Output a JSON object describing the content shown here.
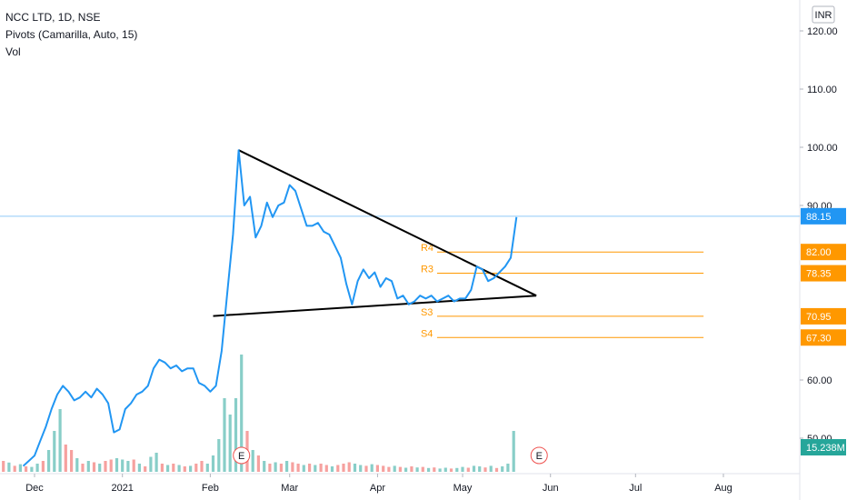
{
  "legend": {
    "symbol": "NCC LTD, 1D, NSE",
    "pivots": "Pivots (Camarilla, Auto, 15)",
    "volume": "Vol"
  },
  "currency": "INR",
  "colors": {
    "price_line": "#2196f3",
    "pivot_line": "#ff9800",
    "trend_line": "#000000",
    "vol_up": "#26a69a",
    "vol_down": "#ef5350",
    "last_price_tag": "#2196f3",
    "volume_tag": "#26a69a",
    "earnings": "#ef5350"
  },
  "chart_data": {
    "type": "line",
    "title": "NCC LTD, 1D, NSE",
    "x_ticks": [
      "Dec",
      "2021",
      "Feb",
      "Mar",
      "Apr",
      "May",
      "Jun",
      "Jul",
      "Aug"
    ],
    "x_tick_dates": [
      "2020-12-01",
      "2021-01-01",
      "2021-02-01",
      "2021-03-01",
      "2021-04-01",
      "2021-05-01",
      "2021-06-01",
      "2021-07-01",
      "2021-08-01"
    ],
    "y_ticks": [
      "120.00",
      "110.00",
      "100.00",
      "90.00",
      "60.00",
      "50.00"
    ],
    "y_tick_values": [
      120,
      110,
      100,
      90,
      60,
      50
    ],
    "ylim": [
      45.5,
      125
    ],
    "grid": false,
    "price_series": {
      "name": "NCC LTD",
      "points": [
        [
          "2020-11-27",
          45.2
        ],
        [
          "2020-12-01",
          47.0
        ],
        [
          "2020-12-03",
          49.5
        ],
        [
          "2020-12-05",
          52.0
        ],
        [
          "2020-12-07",
          55.0
        ],
        [
          "2020-12-09",
          57.5
        ],
        [
          "2020-12-11",
          59.0
        ],
        [
          "2020-12-13",
          58.0
        ],
        [
          "2020-12-15",
          56.5
        ],
        [
          "2020-12-17",
          57.0
        ],
        [
          "2020-12-19",
          58.0
        ],
        [
          "2020-12-21",
          57.0
        ],
        [
          "2020-12-23",
          58.5
        ],
        [
          "2020-12-25",
          57.5
        ],
        [
          "2020-12-27",
          56.0
        ],
        [
          "2020-12-29",
          51.0
        ],
        [
          "2020-12-31",
          51.5
        ],
        [
          "2021-01-02",
          55.0
        ],
        [
          "2021-01-04",
          56.0
        ],
        [
          "2021-01-06",
          57.5
        ],
        [
          "2021-01-08",
          58.0
        ],
        [
          "2021-01-10",
          59.0
        ],
        [
          "2021-01-12",
          62.0
        ],
        [
          "2021-01-14",
          63.5
        ],
        [
          "2021-01-16",
          63.0
        ],
        [
          "2021-01-18",
          62.0
        ],
        [
          "2021-01-20",
          62.5
        ],
        [
          "2021-01-22",
          61.5
        ],
        [
          "2021-01-24",
          62.0
        ],
        [
          "2021-01-26",
          62.0
        ],
        [
          "2021-01-28",
          59.5
        ],
        [
          "2021-01-30",
          59.0
        ],
        [
          "2021-02-01",
          58.0
        ],
        [
          "2021-02-03",
          59.0
        ],
        [
          "2021-02-05",
          65.0
        ],
        [
          "2021-02-07",
          75.0
        ],
        [
          "2021-02-09",
          85.0
        ],
        [
          "2021-02-11",
          99.5
        ],
        [
          "2021-02-13",
          90.0
        ],
        [
          "2021-02-15",
          91.5
        ],
        [
          "2021-02-17",
          84.5
        ],
        [
          "2021-02-19",
          86.5
        ],
        [
          "2021-02-21",
          90.5
        ],
        [
          "2021-02-23",
          88.0
        ],
        [
          "2021-02-25",
          90.0
        ],
        [
          "2021-02-27",
          90.5
        ],
        [
          "2021-03-01",
          93.5
        ],
        [
          "2021-03-03",
          92.5
        ],
        [
          "2021-03-05",
          89.5
        ],
        [
          "2021-03-07",
          86.5
        ],
        [
          "2021-03-09",
          86.5
        ],
        [
          "2021-03-11",
          87.0
        ],
        [
          "2021-03-13",
          85.5
        ],
        [
          "2021-03-15",
          85.0
        ],
        [
          "2021-03-17",
          83.0
        ],
        [
          "2021-03-19",
          81.0
        ],
        [
          "2021-03-21",
          76.5
        ],
        [
          "2021-03-23",
          73.0
        ],
        [
          "2021-03-25",
          77.0
        ],
        [
          "2021-03-27",
          79.0
        ],
        [
          "2021-03-29",
          77.5
        ],
        [
          "2021-03-31",
          78.5
        ],
        [
          "2021-04-02",
          76.0
        ],
        [
          "2021-04-04",
          77.5
        ],
        [
          "2021-04-06",
          77.0
        ],
        [
          "2021-04-08",
          74.0
        ],
        [
          "2021-04-10",
          74.5
        ],
        [
          "2021-04-12",
          73.0
        ],
        [
          "2021-04-14",
          73.5
        ],
        [
          "2021-04-16",
          74.5
        ],
        [
          "2021-04-18",
          74.0
        ],
        [
          "2021-04-20",
          74.5
        ],
        [
          "2021-04-22",
          73.5
        ],
        [
          "2021-04-24",
          74.0
        ],
        [
          "2021-04-26",
          74.5
        ],
        [
          "2021-04-28",
          73.5
        ],
        [
          "2021-04-30",
          74.0
        ],
        [
          "2021-05-02",
          74.0
        ],
        [
          "2021-05-04",
          75.5
        ],
        [
          "2021-05-06",
          79.5
        ],
        [
          "2021-05-08",
          79.0
        ],
        [
          "2021-05-10",
          77.0
        ],
        [
          "2021-05-12",
          77.5
        ],
        [
          "2021-05-14",
          78.5
        ],
        [
          "2021-05-16",
          79.5
        ],
        [
          "2021-05-18",
          81.0
        ],
        [
          "2021-05-20",
          88.0
        ]
      ]
    },
    "trend_lines": [
      {
        "from": [
          "2021-02-11",
          99.5
        ],
        "to": [
          "2021-05-27",
          74.5
        ]
      },
      {
        "from": [
          "2021-02-02",
          71.0
        ],
        "to": [
          "2021-05-27",
          74.5
        ]
      }
    ],
    "pivot_levels": [
      {
        "label": "R4",
        "value": 82.0,
        "price": "82.00",
        "start": "2021-04-22",
        "end": "2021-07-25"
      },
      {
        "label": "R3",
        "value": 78.35,
        "price": "78.35",
        "start": "2021-04-22",
        "end": "2021-07-25"
      },
      {
        "label": "S3",
        "value": 70.95,
        "price": "70.95",
        "start": "2021-04-22",
        "end": "2021-07-25"
      },
      {
        "label": "S4",
        "value": 67.3,
        "price": "67.30",
        "start": "2021-04-22",
        "end": "2021-07-25"
      }
    ],
    "last_price": {
      "value": 88.15,
      "label": "88.15"
    },
    "volume_series": {
      "name": "Vol",
      "last_label": "15.238M",
      "bars": [
        {
          "date": "2020-11-18",
          "v": 0.3,
          "up": true
        },
        {
          "date": "2020-11-20",
          "v": 0.4,
          "up": false
        },
        {
          "date": "2020-11-22",
          "v": 0.34,
          "up": true
        },
        {
          "date": "2020-11-24",
          "v": 0.22,
          "up": false
        },
        {
          "date": "2020-11-26",
          "v": 0.28,
          "up": true
        },
        {
          "date": "2020-11-28",
          "v": 0.2,
          "up": false
        },
        {
          "date": "2020-11-30",
          "v": 0.18,
          "up": true
        },
        {
          "date": "2020-12-02",
          "v": 0.3,
          "up": true
        },
        {
          "date": "2020-12-04",
          "v": 0.4,
          "up": false
        },
        {
          "date": "2020-12-06",
          "v": 0.8,
          "up": true
        },
        {
          "date": "2020-12-08",
          "v": 1.5,
          "up": true
        },
        {
          "date": "2020-12-10",
          "v": 2.3,
          "up": true
        },
        {
          "date": "2020-12-12",
          "v": 1.0,
          "up": false
        },
        {
          "date": "2020-12-14",
          "v": 0.8,
          "up": false
        },
        {
          "date": "2020-12-16",
          "v": 0.5,
          "up": true
        },
        {
          "date": "2020-12-18",
          "v": 0.3,
          "up": false
        },
        {
          "date": "2020-12-20",
          "v": 0.4,
          "up": true
        },
        {
          "date": "2020-12-22",
          "v": 0.35,
          "up": false
        },
        {
          "date": "2020-12-24",
          "v": 0.3,
          "up": true
        },
        {
          "date": "2020-12-26",
          "v": 0.4,
          "up": false
        },
        {
          "date": "2020-12-28",
          "v": 0.45,
          "up": false
        },
        {
          "date": "2020-12-30",
          "v": 0.5,
          "up": true
        },
        {
          "date": "2021-01-01",
          "v": 0.45,
          "up": true
        },
        {
          "date": "2021-01-03",
          "v": 0.4,
          "up": true
        },
        {
          "date": "2021-01-05",
          "v": 0.45,
          "up": false
        },
        {
          "date": "2021-01-07",
          "v": 0.3,
          "up": true
        },
        {
          "date": "2021-01-09",
          "v": 0.2,
          "up": false
        },
        {
          "date": "2021-01-11",
          "v": 0.55,
          "up": true
        },
        {
          "date": "2021-01-13",
          "v": 0.7,
          "up": true
        },
        {
          "date": "2021-01-15",
          "v": 0.3,
          "up": false
        },
        {
          "date": "2021-01-17",
          "v": 0.25,
          "up": true
        },
        {
          "date": "2021-01-19",
          "v": 0.3,
          "up": false
        },
        {
          "date": "2021-01-21",
          "v": 0.25,
          "up": true
        },
        {
          "date": "2021-01-23",
          "v": 0.2,
          "up": false
        },
        {
          "date": "2021-01-25",
          "v": 0.22,
          "up": true
        },
        {
          "date": "2021-01-27",
          "v": 0.3,
          "up": false
        },
        {
          "date": "2021-01-29",
          "v": 0.4,
          "up": false
        },
        {
          "date": "2021-01-31",
          "v": 0.3,
          "up": true
        },
        {
          "date": "2021-02-02",
          "v": 0.6,
          "up": true
        },
        {
          "date": "2021-02-04",
          "v": 1.2,
          "up": true
        },
        {
          "date": "2021-02-06",
          "v": 2.7,
          "up": true
        },
        {
          "date": "2021-02-08",
          "v": 2.1,
          "up": true
        },
        {
          "date": "2021-02-10",
          "v": 2.7,
          "up": true
        },
        {
          "date": "2021-02-12",
          "v": 4.3,
          "up": true
        },
        {
          "date": "2021-02-14",
          "v": 1.5,
          "up": false
        },
        {
          "date": "2021-02-16",
          "v": 0.8,
          "up": true
        },
        {
          "date": "2021-02-18",
          "v": 0.6,
          "up": false
        },
        {
          "date": "2021-02-20",
          "v": 0.4,
          "up": true
        },
        {
          "date": "2021-02-22",
          "v": 0.3,
          "up": false
        },
        {
          "date": "2021-02-24",
          "v": 0.35,
          "up": true
        },
        {
          "date": "2021-02-26",
          "v": 0.3,
          "up": false
        },
        {
          "date": "2021-02-28",
          "v": 0.4,
          "up": true
        },
        {
          "date": "2021-03-02",
          "v": 0.35,
          "up": false
        },
        {
          "date": "2021-03-04",
          "v": 0.3,
          "up": false
        },
        {
          "date": "2021-03-06",
          "v": 0.25,
          "up": true
        },
        {
          "date": "2021-03-08",
          "v": 0.3,
          "up": false
        },
        {
          "date": "2021-03-10",
          "v": 0.25,
          "up": true
        },
        {
          "date": "2021-03-12",
          "v": 0.3,
          "up": false
        },
        {
          "date": "2021-03-14",
          "v": 0.25,
          "up": false
        },
        {
          "date": "2021-03-16",
          "v": 0.2,
          "up": true
        },
        {
          "date": "2021-03-18",
          "v": 0.25,
          "up": false
        },
        {
          "date": "2021-03-20",
          "v": 0.3,
          "up": false
        },
        {
          "date": "2021-03-22",
          "v": 0.35,
          "up": false
        },
        {
          "date": "2021-03-24",
          "v": 0.3,
          "up": true
        },
        {
          "date": "2021-03-26",
          "v": 0.25,
          "up": true
        },
        {
          "date": "2021-03-28",
          "v": 0.22,
          "up": false
        },
        {
          "date": "2021-03-30",
          "v": 0.28,
          "up": true
        },
        {
          "date": "2021-04-01",
          "v": 0.25,
          "up": false
        },
        {
          "date": "2021-04-03",
          "v": 0.22,
          "up": false
        },
        {
          "date": "2021-04-05",
          "v": 0.18,
          "up": false
        },
        {
          "date": "2021-04-07",
          "v": 0.22,
          "up": true
        },
        {
          "date": "2021-04-09",
          "v": 0.18,
          "up": false
        },
        {
          "date": "2021-04-11",
          "v": 0.15,
          "up": true
        },
        {
          "date": "2021-04-13",
          "v": 0.2,
          "up": false
        },
        {
          "date": "2021-04-15",
          "v": 0.16,
          "up": true
        },
        {
          "date": "2021-04-17",
          "v": 0.18,
          "up": false
        },
        {
          "date": "2021-04-19",
          "v": 0.14,
          "up": true
        },
        {
          "date": "2021-04-21",
          "v": 0.16,
          "up": false
        },
        {
          "date": "2021-04-23",
          "v": 0.12,
          "up": true
        },
        {
          "date": "2021-04-25",
          "v": 0.15,
          "up": true
        },
        {
          "date": "2021-04-27",
          "v": 0.12,
          "up": false
        },
        {
          "date": "2021-04-29",
          "v": 0.14,
          "up": true
        },
        {
          "date": "2021-05-01",
          "v": 0.18,
          "up": true
        },
        {
          "date": "2021-05-03",
          "v": 0.15,
          "up": false
        },
        {
          "date": "2021-05-05",
          "v": 0.22,
          "up": true
        },
        {
          "date": "2021-05-07",
          "v": 0.2,
          "up": true
        },
        {
          "date": "2021-05-09",
          "v": 0.16,
          "up": false
        },
        {
          "date": "2021-05-11",
          "v": 0.22,
          "up": true
        },
        {
          "date": "2021-05-13",
          "v": 0.14,
          "up": false
        },
        {
          "date": "2021-05-15",
          "v": 0.2,
          "up": true
        },
        {
          "date": "2021-05-17",
          "v": 0.3,
          "up": true
        },
        {
          "date": "2021-05-19",
          "v": 1.5,
          "up": true
        }
      ]
    },
    "earnings_markers": [
      {
        "label": "E",
        "date": "2021-02-12"
      },
      {
        "label": "E",
        "date": "2021-05-28"
      }
    ]
  }
}
